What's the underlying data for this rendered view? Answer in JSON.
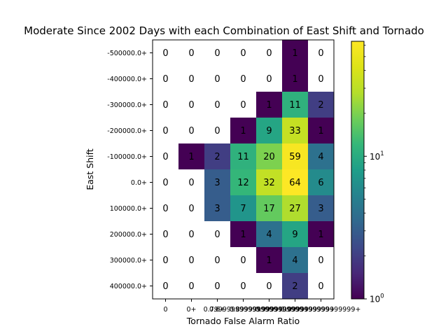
{
  "chart_data": {
    "type": "heatmap",
    "title": "Moderate Since 2002 Days with each Combination of East Shift and Tornado",
    "xlabel": "Tornado False Alarm Ratio",
    "ylabel": "East Shift",
    "x_categories": [
      "0",
      "0+",
      "0.6+",
      "0.7999999999999999+",
      "0.8999999999999999+",
      "0.9999999999999999+",
      "1.0999999999999999+"
    ],
    "y_categories": [
      "-500000.0+",
      "-400000.0+",
      "-300000.0+",
      "-200000.0+",
      "-100000.0+",
      "0.0+",
      "100000.0+",
      "200000.0+",
      "300000.0+",
      "400000.0+"
    ],
    "values": [
      [
        0,
        0,
        0,
        0,
        0,
        1,
        0
      ],
      [
        0,
        0,
        0,
        0,
        0,
        1,
        0
      ],
      [
        0,
        0,
        0,
        0,
        1,
        11,
        2
      ],
      [
        0,
        0,
        0,
        1,
        9,
        33,
        1
      ],
      [
        0,
        1,
        2,
        11,
        20,
        59,
        4
      ],
      [
        0,
        0,
        3,
        12,
        32,
        64,
        6
      ],
      [
        0,
        0,
        3,
        7,
        17,
        27,
        3
      ],
      [
        0,
        0,
        0,
        1,
        4,
        9,
        1
      ],
      [
        0,
        0,
        0,
        0,
        1,
        4,
        0
      ],
      [
        0,
        0,
        0,
        0,
        0,
        2,
        0
      ]
    ],
    "colorbar": {
      "scale": "log",
      "colormap": "viridis",
      "range": [
        1,
        64
      ],
      "tick_labels": [
        {
          "value": 1,
          "base": "10",
          "exp": "0"
        },
        {
          "value": 10,
          "base": "10",
          "exp": "1"
        }
      ]
    },
    "zero_cells": "blank (white)",
    "grid": false
  }
}
